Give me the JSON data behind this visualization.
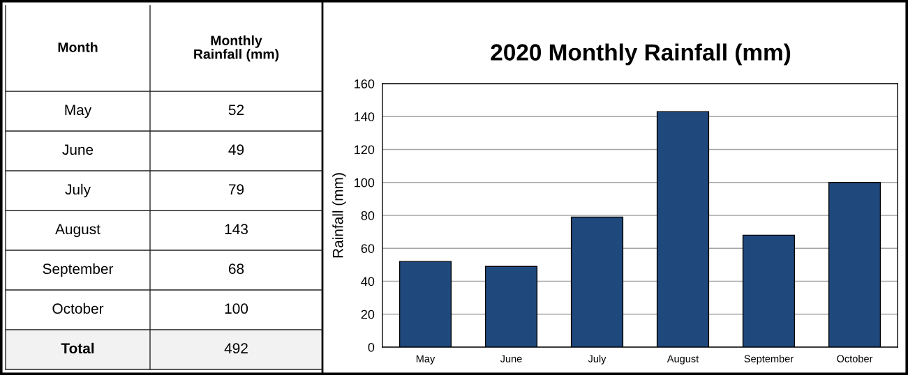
{
  "chart_data": [
    {
      "type": "other",
      "categories": [
        "May",
        "June",
        "July",
        "August",
        "September",
        "October"
      ],
      "values": [
        52,
        49,
        79,
        143,
        68,
        100
      ],
      "value_labels": [
        "52",
        "49",
        "79",
        "143",
        "68",
        "100"
      ],
      "annotations": [
        "Month",
        "Monthly Rainfall (mm)",
        "Total",
        "492"
      ]
    },
    {
      "type": "bar",
      "title": "2020 Monthly Rainfall (mm)",
      "ylabel": "Rainfall (mm)",
      "categories": [
        "May",
        "June",
        "July",
        "August",
        "September",
        "October"
      ],
      "values": [
        52,
        49,
        79,
        143,
        68,
        100
      ],
      "color": "#1f497d",
      "ylim": [
        0,
        160
      ],
      "yticks": [
        0,
        20,
        40,
        60,
        80,
        100,
        120,
        140,
        160
      ],
      "grid": "y"
    }
  ]
}
